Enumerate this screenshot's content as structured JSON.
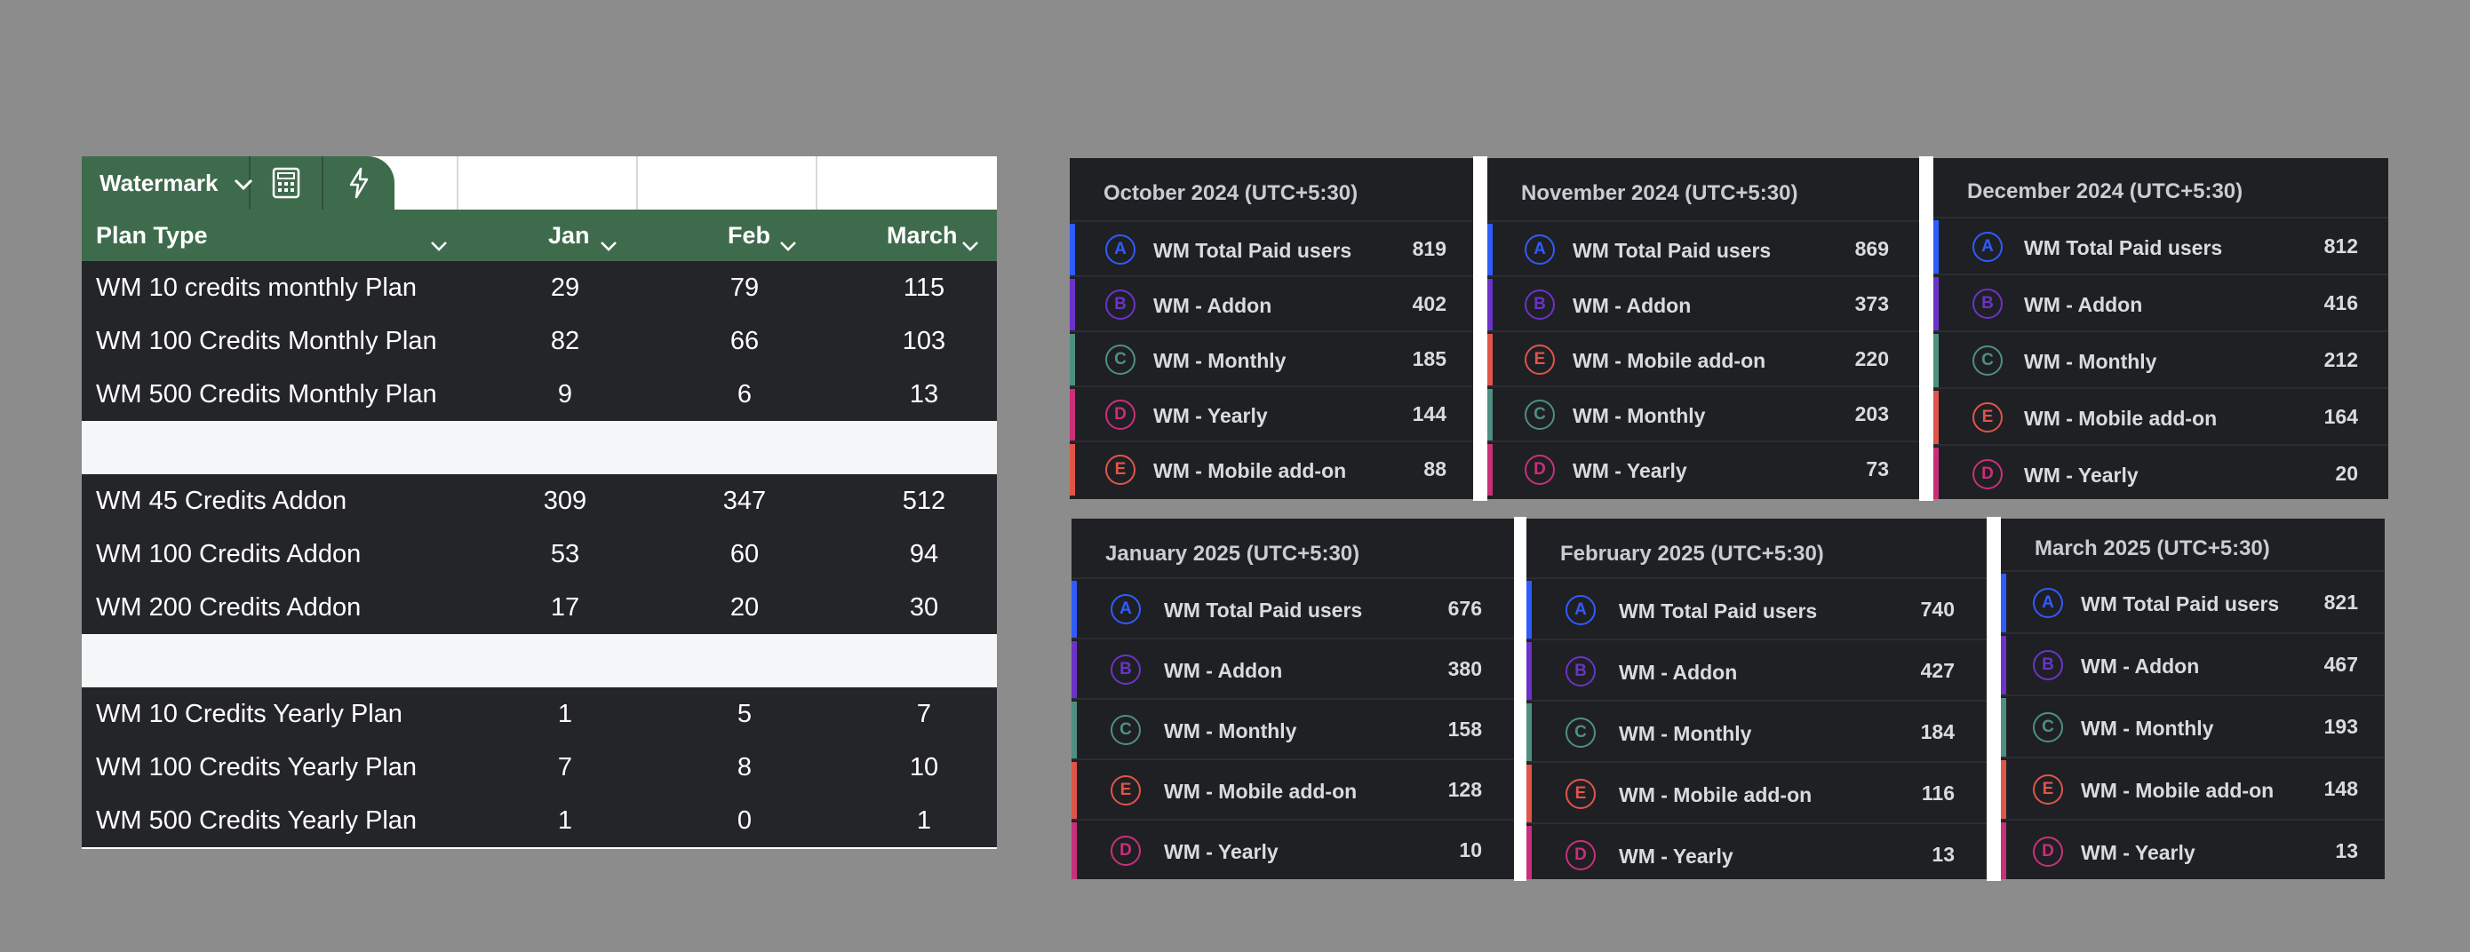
{
  "sheet": {
    "tab_label": "Watermark",
    "icons": [
      "chevron-down-icon",
      "calculator-icon",
      "lightning-icon"
    ],
    "accent": "#3f6b4d",
    "headers": [
      "Plan Type",
      "Jan",
      "Feb",
      "March"
    ],
    "groups": [
      [
        {
          "plan": "WM 10 credits monthly Plan",
          "jan": "29",
          "feb": "79",
          "mar": "115"
        },
        {
          "plan": "WM 100 Credits Monthly Plan",
          "jan": "82",
          "feb": "66",
          "mar": "103"
        },
        {
          "plan": "WM 500 Credits Monthly Plan",
          "jan": "9",
          "feb": "6",
          "mar": "13"
        }
      ],
      [
        {
          "plan": "WM 45 Credits Addon",
          "jan": "309",
          "feb": "347",
          "mar": "512"
        },
        {
          "plan": "WM 100 Credits Addon",
          "jan": "53",
          "feb": "60",
          "mar": "94"
        },
        {
          "plan": "WM 200 Credits Addon",
          "jan": "17",
          "feb": "20",
          "mar": "30"
        }
      ],
      [
        {
          "plan": "WM 10 Credits Yearly Plan",
          "jan": "1",
          "feb": "5",
          "mar": "7"
        },
        {
          "plan": "WM 100 Credits Yearly Plan",
          "jan": "7",
          "feb": "8",
          "mar": "10"
        },
        {
          "plan": "WM 500 Credits Yearly Plan",
          "jan": "1",
          "feb": "0",
          "mar": "1"
        }
      ]
    ]
  },
  "series_colors": {
    "A": "#2f5cff",
    "B": "#6b33c9",
    "C": "#4f8f82",
    "D": "#c9307a",
    "E": "#e0554a"
  },
  "panels": [
    {
      "title": "October 2024 (UTC+5:30)",
      "rows": [
        {
          "letter": "A",
          "label": "WM Total Paid users",
          "value": "819"
        },
        {
          "letter": "B",
          "label": "WM - Addon",
          "value": "402"
        },
        {
          "letter": "C",
          "label": "WM - Monthly",
          "value": "185"
        },
        {
          "letter": "D",
          "label": "WM - Yearly",
          "value": "144"
        },
        {
          "letter": "E",
          "label": "WM - Mobile add-on",
          "value": "88"
        }
      ]
    },
    {
      "title": "November 2024 (UTC+5:30)",
      "rows": [
        {
          "letter": "A",
          "label": "WM Total Paid users",
          "value": "869"
        },
        {
          "letter": "B",
          "label": "WM - Addon",
          "value": "373"
        },
        {
          "letter": "E",
          "label": "WM - Mobile add-on",
          "value": "220"
        },
        {
          "letter": "C",
          "label": "WM - Monthly",
          "value": "203"
        },
        {
          "letter": "D",
          "label": "WM - Yearly",
          "value": "73"
        }
      ]
    },
    {
      "title": "December 2024 (UTC+5:30)",
      "rows": [
        {
          "letter": "A",
          "label": "WM Total Paid users",
          "value": "812"
        },
        {
          "letter": "B",
          "label": "WM - Addon",
          "value": "416"
        },
        {
          "letter": "C",
          "label": "WM - Monthly",
          "value": "212"
        },
        {
          "letter": "E",
          "label": "WM - Mobile add-on",
          "value": "164"
        },
        {
          "letter": "D",
          "label": "WM - Yearly",
          "value": "20"
        }
      ]
    },
    {
      "title": "January 2025 (UTC+5:30)",
      "rows": [
        {
          "letter": "A",
          "label": "WM Total Paid users",
          "value": "676"
        },
        {
          "letter": "B",
          "label": "WM - Addon",
          "value": "380"
        },
        {
          "letter": "C",
          "label": "WM - Monthly",
          "value": "158"
        },
        {
          "letter": "E",
          "label": "WM - Mobile add-on",
          "value": "128"
        },
        {
          "letter": "D",
          "label": "WM - Yearly",
          "value": "10"
        }
      ]
    },
    {
      "title": "February 2025 (UTC+5:30)",
      "rows": [
        {
          "letter": "A",
          "label": "WM Total Paid users",
          "value": "740"
        },
        {
          "letter": "B",
          "label": "WM - Addon",
          "value": "427"
        },
        {
          "letter": "C",
          "label": "WM - Monthly",
          "value": "184"
        },
        {
          "letter": "E",
          "label": "WM - Mobile add-on",
          "value": "116"
        },
        {
          "letter": "D",
          "label": "WM - Yearly",
          "value": "13"
        }
      ]
    },
    {
      "title": "March 2025 (UTC+5:30)",
      "rows": [
        {
          "letter": "A",
          "label": "WM Total Paid users",
          "value": "821"
        },
        {
          "letter": "B",
          "label": "WM - Addon",
          "value": "467"
        },
        {
          "letter": "C",
          "label": "WM - Monthly",
          "value": "193"
        },
        {
          "letter": "E",
          "label": "WM - Mobile add-on",
          "value": "148"
        },
        {
          "letter": "D",
          "label": "WM - Yearly",
          "value": "13"
        }
      ]
    }
  ]
}
